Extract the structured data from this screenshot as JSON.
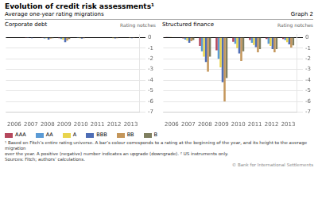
{
  "title": "Evolution of credit risk assessments¹",
  "subtitle": "Average one-year rating migrations",
  "annotations": [
    "Graph 2",
    "¹ Based on Fitch’s entire rating universe. A bar’s colour corresponds to a rating at the beginning of the year, and its height to the average migration",
    "over the year. A positive (negative) number indicates an upgrade (downgrade).  ² US instruments only.",
    "Sources: Fitch; authors’ calculations.",
    "© Bank for International Settlements"
  ],
  "chart_data": [
    {
      "type": "bar",
      "title": "Corporate debt",
      "ylabel": "Rating notches",
      "categories": [
        2006,
        2007,
        2008,
        2009,
        2010,
        2011,
        2012,
        2013
      ],
      "series": [
        {
          "name": "AAA",
          "color": "#b5485d",
          "values": [
            0.0,
            -0.05,
            -0.05,
            -0.08,
            0.0,
            0.0,
            -0.03,
            -0.03
          ]
        },
        {
          "name": "AA",
          "color": "#5b9bd5",
          "values": [
            0.0,
            -0.05,
            -0.1,
            -0.15,
            -0.05,
            0.0,
            -0.04,
            -0.04
          ]
        },
        {
          "name": "A",
          "color": "#e8d44d",
          "values": [
            0.03,
            0.0,
            -0.08,
            -0.2,
            -0.08,
            0.0,
            -0.08,
            -0.06
          ]
        },
        {
          "name": "BBB",
          "color": "#4e6db5",
          "values": [
            0.0,
            -0.08,
            -0.2,
            -0.45,
            -0.12,
            -0.04,
            -0.1,
            -0.08
          ]
        },
        {
          "name": "BB",
          "color": "#c4965a",
          "values": [
            0.0,
            -0.04,
            -0.12,
            -0.3,
            -0.08,
            0.0,
            -0.08,
            -0.06
          ]
        },
        {
          "name": "B",
          "color": "#7f7f60",
          "values": [
            0.0,
            -0.04,
            -0.08,
            -0.15,
            -0.04,
            0.0,
            -0.04,
            -0.04
          ]
        }
      ],
      "ylim": [
        -7,
        0.3
      ],
      "yticks": [
        0,
        -1,
        -2,
        -3,
        -4,
        -5,
        -6,
        -7
      ],
      "grid": true,
      "legend": "bottom"
    },
    {
      "type": "bar",
      "title": "Structured finance",
      "ylabel": "Rating notches",
      "categories": [
        2006,
        2007,
        2008,
        2009,
        2010,
        2011,
        2012,
        2013
      ],
      "series": [
        {
          "name": "AAA",
          "color": "#b5485d",
          "values": [
            0.05,
            -0.1,
            -0.8,
            -1.2,
            -0.4,
            -0.25,
            -0.15,
            -0.15
          ]
        },
        {
          "name": "AA",
          "color": "#5b9bd5",
          "values": [
            0.05,
            -0.2,
            -1.3,
            -2.0,
            -0.6,
            -0.5,
            -0.6,
            -0.25
          ]
        },
        {
          "name": "A",
          "color": "#e8d44d",
          "values": [
            0.05,
            -0.3,
            -1.8,
            -2.8,
            -1.0,
            -0.7,
            -0.8,
            -0.45
          ]
        },
        {
          "name": "BBB",
          "color": "#4e6db5",
          "values": [
            0.0,
            -0.5,
            -2.3,
            -4.2,
            -1.5,
            -0.9,
            -1.1,
            -0.65
          ]
        },
        {
          "name": "BB",
          "color": "#c4965a",
          "values": [
            0.0,
            -0.35,
            -3.2,
            -6.0,
            -2.2,
            -1.4,
            -1.4,
            -0.95
          ]
        },
        {
          "name": "B",
          "color": "#7f7f60",
          "values": [
            0.0,
            -0.25,
            -1.8,
            -3.8,
            -1.3,
            -1.1,
            -1.1,
            -0.75
          ]
        }
      ],
      "ylim": [
        -7,
        0.3
      ],
      "yticks": [
        0,
        -1,
        -2,
        -3,
        -4,
        -5,
        -6,
        -7
      ],
      "grid": true
    }
  ]
}
